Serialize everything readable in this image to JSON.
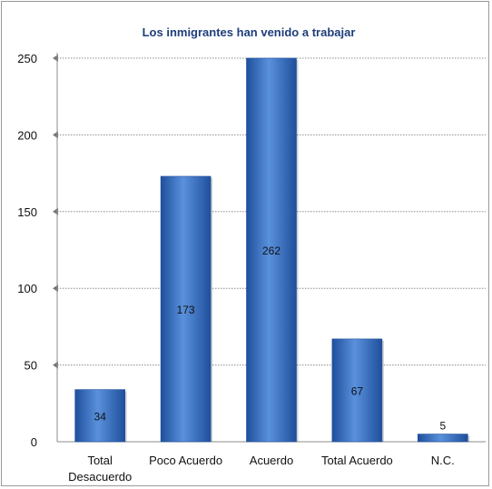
{
  "chart_data": {
    "type": "bar",
    "title": "Los inmigrantes han venido a trabajar",
    "categories": [
      "Total Desacuerdo",
      "Poco Acuerdo",
      "Acuerdo",
      "Total Acuerdo",
      "N.C."
    ],
    "category_lines": [
      [
        "Total",
        "Desacuerdo"
      ],
      [
        "Poco Acuerdo"
      ],
      [
        "Acuerdo"
      ],
      [
        "Total Acuerdo"
      ],
      [
        "N.C."
      ]
    ],
    "values": [
      34,
      173,
      262,
      67,
      5
    ],
    "data_labels": [
      "34",
      "173",
      "262",
      "67",
      "5"
    ],
    "ylim": [
      0,
      250
    ],
    "yticks": [
      0,
      50,
      100,
      150,
      200,
      250
    ],
    "grid": true,
    "legend": "none",
    "bar_color": "#2e6bc4",
    "bar_color_light": "#5a91dc",
    "bar_color_dark": "#1f4f9c",
    "title_color": "#1f3e7a"
  }
}
